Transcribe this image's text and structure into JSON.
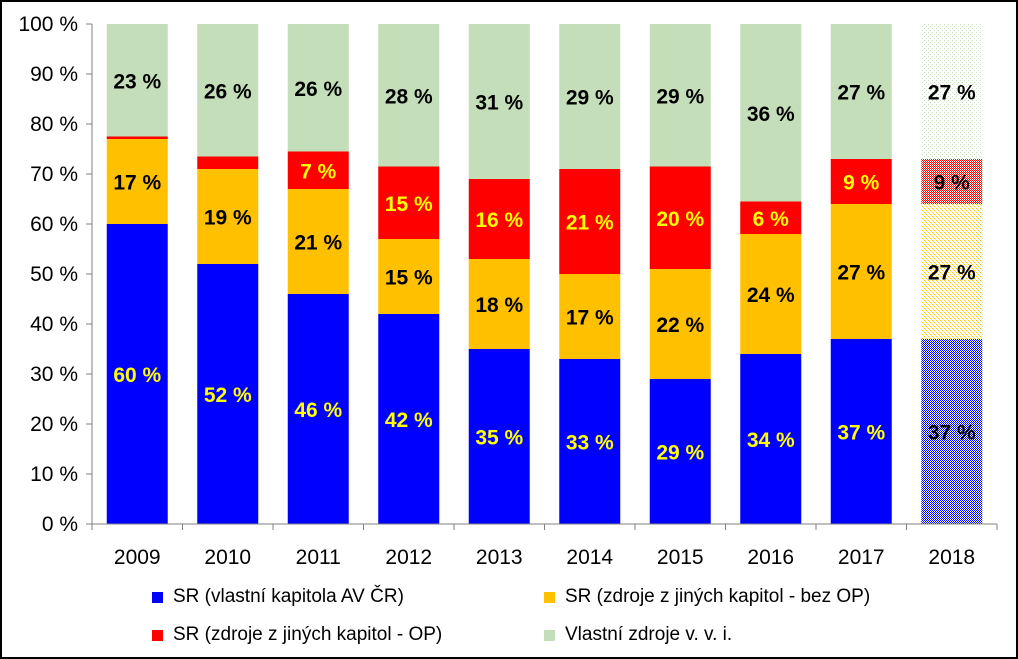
{
  "chart_data": {
    "type": "bar",
    "stacked": true,
    "percent": true,
    "title": "",
    "xlabel": "",
    "ylabel": "",
    "ylim": [
      0,
      100
    ],
    "yticks": [
      "0 %",
      "10 %",
      "20 %",
      "30 %",
      "40 %",
      "50 %",
      "60 %",
      "70 %",
      "80 %",
      "90 %",
      "100 %"
    ],
    "categories": [
      "2009",
      "2010",
      "2011",
      "2012",
      "2013",
      "2014",
      "2015",
      "2016",
      "2017",
      "2018"
    ],
    "hatched_categories": [
      "2018"
    ],
    "grid": false,
    "legend_position": "bottom",
    "series": [
      {
        "name": "SR (vlastní kapitola AV ČR)",
        "color": "#0000FF",
        "label_color": "#FFFF00",
        "values": [
          60,
          52,
          46,
          42,
          35,
          33,
          29,
          34,
          37,
          37
        ],
        "labels": [
          "60 %",
          "52 %",
          "46 %",
          "42 %",
          "35 %",
          "33 %",
          "29 %",
          "34 %",
          "37 %",
          "37 %"
        ]
      },
      {
        "name": "SR (zdroje z jiných kapitol - bez OP)",
        "color": "#FFC000",
        "label_color": "#000000",
        "values": [
          17,
          19,
          21,
          15,
          18,
          17,
          22,
          24,
          27,
          27
        ],
        "labels": [
          "17 %",
          "19 %",
          "21 %",
          "15 %",
          "18 %",
          "17 %",
          "22 %",
          "24 %",
          "27 %",
          "27 %"
        ]
      },
      {
        "name": "SR (zdroje z jiných kapitol - OP)",
        "color": "#FF0000",
        "label_color": "#FFFF00",
        "values": [
          0.5,
          2.5,
          7.5,
          14.5,
          16,
          21,
          20.5,
          6.5,
          9,
          9
        ],
        "labels": [
          "",
          "",
          "7 %",
          "15 %",
          "16 %",
          "21 %",
          "20 %",
          "6 %",
          "9 %",
          "9 %"
        ]
      },
      {
        "name": "Vlastní zdroje v. v. i.",
        "color": "#C4DEB9",
        "label_color": "#000000",
        "values": [
          22.5,
          26.5,
          25.5,
          28.5,
          31,
          29,
          28.5,
          35.5,
          27,
          27
        ],
        "labels": [
          "23 %",
          "26 %",
          "26 %",
          "28 %",
          "31 %",
          "29 %",
          "29 %",
          "36 %",
          "27 %",
          "27 %"
        ]
      }
    ]
  }
}
